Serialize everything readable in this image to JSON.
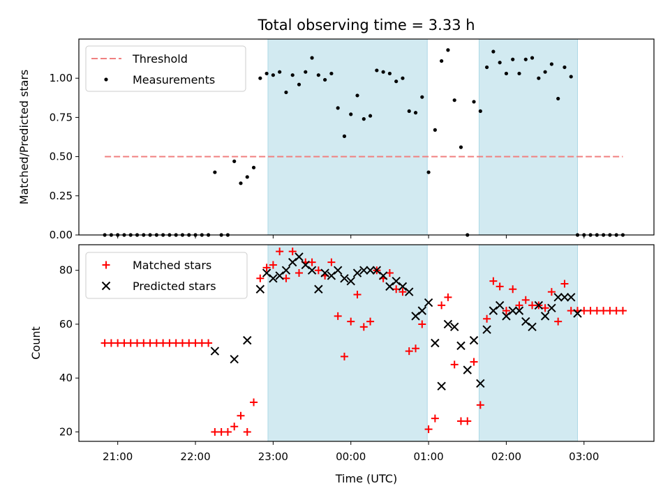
{
  "chart_data": [
    {
      "type": "scatter",
      "title": "Total observing time = 3.33 h",
      "xlabel": "",
      "ylabel": "Matched/Predicted stars",
      "xlim": [
        20.5,
        3.9
      ],
      "ylim": [
        0,
        1.25
      ],
      "yticks": [
        0.0,
        0.25,
        0.5,
        0.75,
        1.0
      ],
      "ytick_labels": [
        "0.00",
        "0.25",
        "0.50",
        "0.75",
        "1.00"
      ],
      "threshold": {
        "name": "Threshold",
        "value": 0.5,
        "x_start": "20:50",
        "x_end": "03:30",
        "color": "#f08080"
      },
      "shaded_intervals": [
        [
          "22:56",
          "00:59"
        ],
        [
          "01:39",
          "02:55"
        ]
      ],
      "shade_color": "#add8e6",
      "legend": {
        "position": "upper-left",
        "entries": [
          "Threshold",
          "Measurements"
        ]
      },
      "series": [
        {
          "name": "Measurements",
          "marker": "dot",
          "color": "#000000",
          "x": [
            "20:50",
            "20:55",
            "21:00",
            "21:05",
            "21:10",
            "21:15",
            "21:20",
            "21:25",
            "21:30",
            "21:35",
            "21:40",
            "21:45",
            "21:50",
            "21:55",
            "22:00",
            "22:05",
            "22:10",
            "22:15",
            "22:20",
            "22:25",
            "22:30",
            "22:35",
            "22:40",
            "22:45",
            "22:50",
            "22:55",
            "23:00",
            "23:05",
            "23:10",
            "23:15",
            "23:20",
            "23:25",
            "23:30",
            "23:35",
            "23:40",
            "23:45",
            "23:50",
            "23:55",
            "00:00",
            "00:05",
            "00:10",
            "00:15",
            "00:20",
            "00:25",
            "00:30",
            "00:35",
            "00:40",
            "00:45",
            "00:50",
            "00:55",
            "01:00",
            "01:05",
            "01:10",
            "01:15",
            "01:20",
            "01:25",
            "01:30",
            "01:35",
            "01:40",
            "01:45",
            "01:50",
            "01:55",
            "02:00",
            "02:05",
            "02:10",
            "02:15",
            "02:20",
            "02:25",
            "02:30",
            "02:35",
            "02:40",
            "02:45",
            "02:50",
            "02:55",
            "03:00",
            "03:05",
            "03:10",
            "03:15",
            "03:20",
            "03:25",
            "03:30"
          ],
          "y": [
            0.0,
            0.0,
            0.0,
            0.0,
            0.0,
            0.0,
            0.0,
            0.0,
            0.0,
            0.0,
            0.0,
            0.0,
            0.0,
            0.0,
            0.0,
            0.0,
            0.0,
            0.4,
            0.0,
            0.0,
            0.47,
            0.33,
            0.37,
            0.43,
            1.0,
            1.03,
            1.02,
            1.04,
            0.91,
            1.02,
            0.96,
            1.04,
            1.13,
            1.02,
            0.99,
            1.03,
            0.81,
            0.63,
            0.77,
            0.89,
            0.74,
            0.76,
            1.05,
            1.04,
            1.03,
            0.98,
            1.0,
            0.79,
            0.78,
            0.88,
            0.4,
            0.67,
            1.11,
            1.18,
            0.86,
            0.56,
            0.0,
            0.85,
            0.79,
            1.07,
            1.17,
            1.1,
            1.03,
            1.12,
            1.03,
            1.12,
            1.13,
            1.0,
            1.04,
            1.09,
            0.87,
            1.07,
            1.01,
            0.0,
            0.0,
            0.0,
            0.0,
            0.0,
            0.0,
            0.0,
            0.0
          ]
        }
      ]
    },
    {
      "type": "scatter",
      "title": "",
      "xlabel": "Time (UTC)",
      "ylabel": "Count",
      "xlim": [
        20.5,
        3.9
      ],
      "ylim": [
        16.5,
        89.5
      ],
      "yticks": [
        20,
        40,
        60,
        80
      ],
      "ytick_labels": [
        "20",
        "40",
        "60",
        "80"
      ],
      "xticks": [
        "21:00",
        "22:00",
        "23:00",
        "00:00",
        "01:00",
        "02:00",
        "03:00"
      ],
      "shaded_intervals": [
        [
          "22:56",
          "00:59"
        ],
        [
          "01:39",
          "02:55"
        ]
      ],
      "shade_color": "#add8e6",
      "legend": {
        "position": "upper-left",
        "entries": [
          "Matched stars",
          "Predicted stars"
        ]
      },
      "series": [
        {
          "name": "Matched stars",
          "marker": "plus",
          "color": "#ff0000",
          "x": [
            "20:50",
            "20:55",
            "21:00",
            "21:05",
            "21:10",
            "21:15",
            "21:20",
            "21:25",
            "21:30",
            "21:35",
            "21:40",
            "21:45",
            "21:50",
            "21:55",
            "22:00",
            "22:05",
            "22:10",
            "22:15",
            "22:20",
            "22:25",
            "22:30",
            "22:35",
            "22:40",
            "22:45",
            "22:50",
            "22:55",
            "23:00",
            "23:05",
            "23:10",
            "23:15",
            "23:20",
            "23:25",
            "23:30",
            "23:35",
            "23:40",
            "23:45",
            "23:50",
            "23:55",
            "00:00",
            "00:05",
            "00:10",
            "00:15",
            "00:20",
            "00:25",
            "00:30",
            "00:35",
            "00:40",
            "00:45",
            "00:50",
            "00:55",
            "01:00",
            "01:05",
            "01:10",
            "01:15",
            "01:20",
            "01:25",
            "01:30",
            "01:35",
            "01:40",
            "01:45",
            "01:50",
            "01:55",
            "02:00",
            "02:05",
            "02:10",
            "02:15",
            "02:20",
            "02:25",
            "02:30",
            "02:35",
            "02:40",
            "02:45",
            "02:50",
            "02:55",
            "03:00",
            "03:05",
            "03:10",
            "03:15",
            "03:20",
            "03:25",
            "03:30"
          ],
          "y": [
            53,
            53,
            53,
            53,
            53,
            53,
            53,
            53,
            53,
            53,
            53,
            53,
            53,
            53,
            53,
            53,
            53,
            20,
            20,
            20,
            22,
            26,
            20,
            31,
            77,
            81,
            82,
            87,
            77,
            87,
            79,
            83,
            83,
            80,
            78,
            83,
            63,
            48,
            61,
            71,
            59,
            61,
            80,
            77,
            79,
            73,
            72,
            50,
            51,
            60,
            21,
            25,
            67,
            70,
            45,
            24,
            24,
            46,
            30,
            62,
            76,
            74,
            65,
            73,
            67,
            69,
            67,
            67,
            66,
            72,
            61,
            75,
            65,
            65,
            65,
            65,
            65,
            65,
            65,
            65,
            65
          ]
        },
        {
          "name": "Predicted stars",
          "marker": "x",
          "color": "#000000",
          "x": [
            "22:15",
            "22:30",
            "22:40",
            "22:50",
            "22:55",
            "23:00",
            "23:05",
            "23:10",
            "23:15",
            "23:20",
            "23:25",
            "23:30",
            "23:35",
            "23:40",
            "23:45",
            "23:50",
            "23:55",
            "00:00",
            "00:05",
            "00:10",
            "00:15",
            "00:20",
            "00:25",
            "00:30",
            "00:35",
            "00:40",
            "00:45",
            "00:50",
            "00:55",
            "01:00",
            "01:05",
            "01:10",
            "01:15",
            "01:20",
            "01:25",
            "01:30",
            "01:35",
            "01:40",
            "01:45",
            "01:50",
            "01:55",
            "02:00",
            "02:05",
            "02:10",
            "02:15",
            "02:20",
            "02:25",
            "02:30",
            "02:35",
            "02:40",
            "02:45",
            "02:50",
            "02:55"
          ],
          "y": [
            50,
            47,
            54,
            73,
            79,
            77,
            78,
            80,
            83,
            85,
            82,
            80,
            73,
            79,
            78,
            80,
            77,
            76,
            79,
            80,
            80,
            80,
            78,
            74,
            76,
            74,
            72,
            63,
            65,
            68,
            53,
            37,
            60,
            59,
            52,
            43,
            54,
            38,
            58,
            65,
            67,
            63,
            65,
            65,
            61,
            59,
            67,
            63,
            66,
            70,
            70,
            70,
            64
          ]
        }
      ]
    }
  ]
}
